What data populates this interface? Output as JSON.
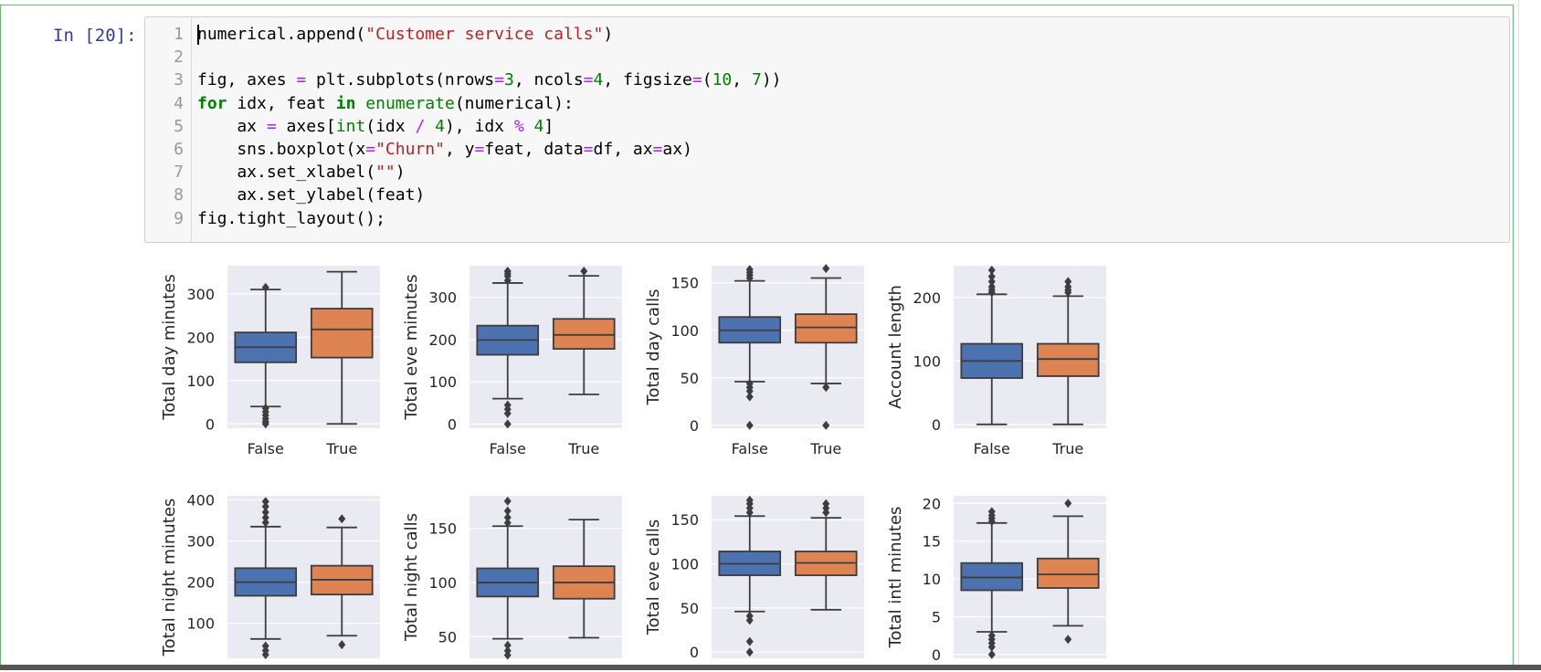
{
  "cell": {
    "prompt": "In [20]:",
    "lines": [
      {
        "n": "1",
        "tokens": [
          [
            "numerical.append(",
            ""
          ],
          [
            "\"Customer service calls\"",
            "str"
          ],
          [
            ")",
            ""
          ]
        ]
      },
      {
        "n": "2",
        "tokens": []
      },
      {
        "n": "3",
        "tokens": [
          [
            "fig, axes ",
            ""
          ],
          [
            "=",
            "op"
          ],
          [
            " plt.subplots(nrows",
            ""
          ],
          [
            "=",
            "op"
          ],
          [
            "3",
            "num"
          ],
          [
            ", ncols",
            ""
          ],
          [
            "=",
            "op"
          ],
          [
            "4",
            "num"
          ],
          [
            ", figsize",
            ""
          ],
          [
            "=",
            "op"
          ],
          [
            "(",
            ""
          ],
          [
            "10",
            "num"
          ],
          [
            ", ",
            ""
          ],
          [
            "7",
            "num"
          ],
          [
            "))",
            ""
          ]
        ]
      },
      {
        "n": "4",
        "tokens": [
          [
            "for",
            "kw"
          ],
          [
            " idx, feat ",
            ""
          ],
          [
            "in",
            "kw"
          ],
          [
            " ",
            ""
          ],
          [
            "enumerate",
            "bi"
          ],
          [
            "(numerical):",
            ""
          ]
        ]
      },
      {
        "n": "5",
        "tokens": [
          [
            "    ax ",
            ""
          ],
          [
            "=",
            "op"
          ],
          [
            " axes[",
            ""
          ],
          [
            "int",
            "bi"
          ],
          [
            "(idx ",
            ""
          ],
          [
            "/",
            "op"
          ],
          [
            " ",
            ""
          ],
          [
            "4",
            "num"
          ],
          [
            "), idx ",
            ""
          ],
          [
            "%",
            "op"
          ],
          [
            " ",
            ""
          ],
          [
            "4",
            "num"
          ],
          [
            "]",
            ""
          ]
        ]
      },
      {
        "n": "6",
        "tokens": [
          [
            "    sns.boxplot(x",
            ""
          ],
          [
            "=",
            "op"
          ],
          [
            "\"Churn\"",
            "str"
          ],
          [
            ", y",
            ""
          ],
          [
            "=",
            "op"
          ],
          [
            "feat, data",
            ""
          ],
          [
            "=",
            "op"
          ],
          [
            "df, ax",
            ""
          ],
          [
            "=",
            "op"
          ],
          [
            "ax)",
            ""
          ]
        ]
      },
      {
        "n": "7",
        "tokens": [
          [
            "    ax.set_xlabel(",
            ""
          ],
          [
            "\"\"",
            "str"
          ],
          [
            ")",
            ""
          ]
        ]
      },
      {
        "n": "8",
        "tokens": [
          [
            "    ax.set_ylabel(feat)",
            ""
          ]
        ]
      },
      {
        "n": "9",
        "tokens": [
          [
            "fig.tight_layout();",
            ""
          ]
        ]
      }
    ]
  },
  "colors": {
    "false_box": "#4c72b0",
    "true_box": "#dd8452",
    "panel_bg": "#eaeaf2",
    "grid": "#ffffff",
    "line": "#3d3d3d"
  },
  "chart_data": [
    {
      "type": "box",
      "ylabel": "Total day minutes",
      "categories": [
        "False",
        "True"
      ],
      "ylim": [
        -10,
        365
      ],
      "yticks": [
        0,
        100,
        200,
        300
      ],
      "boxes": [
        {
          "q1": 142,
          "median": 177,
          "q3": 211,
          "wlow": 40,
          "whigh": 310,
          "outliers": [
            0,
            5,
            12,
            20,
            28,
            36,
            315
          ]
        },
        {
          "q1": 153,
          "median": 218,
          "q3": 266,
          "wlow": 0,
          "whigh": 351,
          "outliers": []
        }
      ]
    },
    {
      "type": "box",
      "ylabel": "Total eve minutes",
      "categories": [
        "False",
        "True"
      ],
      "ylim": [
        -10,
        375
      ],
      "yticks": [
        0,
        100,
        200,
        300
      ],
      "boxes": [
        {
          "q1": 164,
          "median": 199,
          "q3": 233,
          "wlow": 60,
          "whigh": 334,
          "outliers": [
            0,
            25,
            35,
            45,
            340,
            350,
            356,
            362
          ]
        },
        {
          "q1": 178,
          "median": 211,
          "q3": 249,
          "wlow": 70,
          "whigh": 351,
          "outliers": [
            362
          ]
        }
      ]
    },
    {
      "type": "box",
      "ylabel": "Total day calls",
      "categories": [
        "False",
        "True"
      ],
      "ylim": [
        -3,
        168
      ],
      "yticks": [
        0,
        50,
        100,
        150
      ],
      "boxes": [
        {
          "q1": 87,
          "median": 100,
          "q3": 114,
          "wlow": 46,
          "whigh": 152,
          "outliers": [
            0,
            30,
            36,
            40,
            44,
            155,
            158,
            161,
            164
          ]
        },
        {
          "q1": 87,
          "median": 103,
          "q3": 117,
          "wlow": 44,
          "whigh": 155,
          "outliers": [
            0,
            40,
            165
          ]
        }
      ]
    },
    {
      "type": "box",
      "ylabel": "Account length",
      "categories": [
        "False",
        "True"
      ],
      "ylim": [
        -6,
        250
      ],
      "yticks": [
        0,
        100,
        200
      ],
      "boxes": [
        {
          "q1": 73,
          "median": 100,
          "q3": 127,
          "wlow": 0,
          "whigh": 205,
          "outliers": [
            208,
            212,
            217,
            225,
            233,
            243
          ]
        },
        {
          "q1": 76,
          "median": 103,
          "q3": 127,
          "wlow": 0,
          "whigh": 202,
          "outliers": [
            208,
            212,
            217,
            225
          ]
        }
      ]
    },
    {
      "type": "box",
      "ylabel": "Total night minutes",
      "categories": [
        "False",
        "True"
      ],
      "ylim": [
        15,
        410
      ],
      "yticks": [
        100,
        200,
        300,
        400
      ],
      "boxes": [
        {
          "q1": 167,
          "median": 200,
          "q3": 234,
          "wlow": 62,
          "whigh": 335,
          "outliers": [
            24,
            34,
            45,
            345,
            357,
            370,
            384,
            396
          ]
        },
        {
          "q1": 170,
          "median": 206,
          "q3": 240,
          "wlow": 70,
          "whigh": 333,
          "outliers": [
            48,
            354
          ]
        }
      ]
    },
    {
      "type": "box",
      "ylabel": "Total night calls",
      "categories": [
        "False",
        "True"
      ],
      "ylim": [
        30,
        180
      ],
      "yticks": [
        50,
        100,
        150
      ],
      "boxes": [
        {
          "q1": 87,
          "median": 100,
          "q3": 113,
          "wlow": 48,
          "whigh": 152,
          "outliers": [
            33,
            37,
            42,
            155,
            160,
            166,
            175
          ]
        },
        {
          "q1": 85,
          "median": 100,
          "q3": 115,
          "wlow": 49,
          "whigh": 158,
          "outliers": []
        }
      ]
    },
    {
      "type": "box",
      "ylabel": "Total eve calls",
      "categories": [
        "False",
        "True"
      ],
      "ylim": [
        -7,
        177
      ],
      "yticks": [
        0,
        50,
        100,
        150
      ],
      "boxes": [
        {
          "q1": 87,
          "median": 100,
          "q3": 114,
          "wlow": 46,
          "whigh": 154,
          "outliers": [
            0,
            12,
            36,
            41,
            158,
            163,
            168,
            172
          ]
        },
        {
          "q1": 87,
          "median": 101,
          "q3": 114,
          "wlow": 48,
          "whigh": 152,
          "outliers": [
            158,
            163,
            168
          ]
        }
      ]
    },
    {
      "type": "box",
      "ylabel": "Total intl minutes",
      "categories": [
        "False",
        "True"
      ],
      "ylim": [
        -0.5,
        21
      ],
      "yticks": [
        0,
        5,
        10,
        15,
        20
      ],
      "boxes": [
        {
          "q1": 8.5,
          "median": 10.2,
          "q3": 12.1,
          "wlow": 3,
          "whigh": 17.4,
          "outliers": [
            0,
            1,
            1.5,
            2,
            2.5,
            17.6,
            18,
            18.4,
            18.9
          ]
        },
        {
          "q1": 8.8,
          "median": 10.6,
          "q3": 12.7,
          "wlow": 3.8,
          "whigh": 18.3,
          "outliers": [
            2,
            20
          ]
        }
      ]
    }
  ]
}
